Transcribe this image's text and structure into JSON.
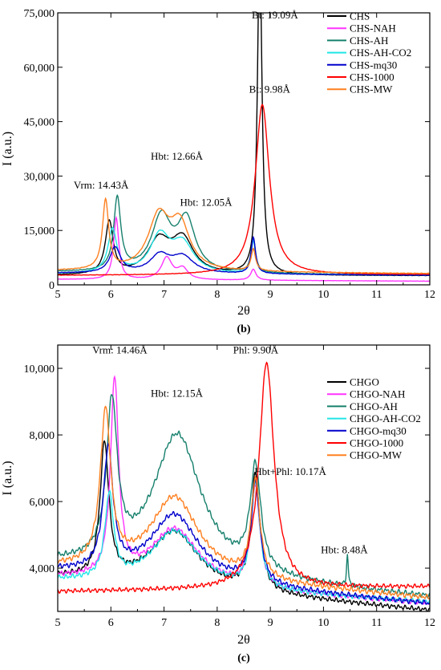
{
  "chart_data": [
    {
      "type": "line",
      "panel_label": "(b)",
      "xlabel": "2θ",
      "ylabel": "I (a.u.)",
      "xlim": [
        5,
        12
      ],
      "ylim": [
        0,
        75000
      ],
      "xticks": [
        5,
        6,
        7,
        8,
        9,
        10,
        11,
        12
      ],
      "yticks": [
        0,
        15000,
        30000,
        45000,
        60000,
        75000
      ],
      "ytick_labels": [
        "0",
        "15,000",
        "30,000",
        "45,000",
        "60,000",
        "75,000"
      ],
      "legend_position": "top-right",
      "grid": false,
      "annotations": [
        {
          "text": "Bt: 19.09Å",
          "x": 8.65,
          "y": 73500
        },
        {
          "text": "Bt: 9.98Å",
          "x": 8.6,
          "y": 53000
        },
        {
          "text": "Hbt: 12.66Å",
          "x": 6.75,
          "y": 34500
        },
        {
          "text": "Vrm: 14.43Å",
          "x": 5.3,
          "y": 26500
        },
        {
          "text": "Hbt: 12.05Å",
          "x": 7.3,
          "y": 21800
        }
      ],
      "series": [
        {
          "name": "CHS",
          "color": "#000000",
          "base": 2500,
          "slope": 0,
          "peaks": [
            [
              5.97,
              14500,
              0.09
            ],
            [
              6.9,
              9000,
              0.25
            ],
            [
              7.35,
              9500,
              0.25
            ],
            [
              8.8,
              93000,
              0.05
            ]
          ]
        },
        {
          "name": "CHS-NAH",
          "color": "#ff33ff",
          "base": 1500,
          "slope": -70,
          "peaks": [
            [
              6.1,
              17000,
              0.06
            ],
            [
              7.05,
              6000,
              0.12
            ],
            [
              7.35,
              3000,
              0.12
            ],
            [
              8.68,
              3000,
              0.06
            ]
          ]
        },
        {
          "name": "CHS-AH",
          "color": "#17806d",
          "base": 3500,
          "slope": -130,
          "peaks": [
            [
              6.12,
              20000,
              0.08
            ],
            [
              6.95,
              15000,
              0.22
            ],
            [
              7.42,
              14000,
              0.2
            ],
            [
              8.68,
              9500,
              0.05
            ]
          ]
        },
        {
          "name": "CHS-AH-CO2",
          "color": "#21e6e6",
          "base": 3000,
          "slope": -50,
          "peaks": [
            [
              6.03,
              12000,
              0.1
            ],
            [
              6.92,
              10000,
              0.22
            ],
            [
              7.35,
              8000,
              0.25
            ],
            [
              8.68,
              9000,
              0.05
            ]
          ]
        },
        {
          "name": "CHS-mq30",
          "color": "#0000cc",
          "base": 3200,
          "slope": -80,
          "peaks": [
            [
              6.08,
              7000,
              0.12
            ],
            [
              6.92,
              4800,
              0.22
            ],
            [
              7.35,
              4500,
              0.25
            ],
            [
              8.68,
              10000,
              0.05
            ]
          ]
        },
        {
          "name": "CHS-1000",
          "color": "#ff0000",
          "base": 2600,
          "slope": 30,
          "peaks": [
            [
              8.85,
              47000,
              0.16
            ]
          ]
        },
        {
          "name": "CHS-MW",
          "color": "#ff8020",
          "base": 3800,
          "slope": -100,
          "peaks": [
            [
              5.9,
              19000,
              0.07
            ],
            [
              6.9,
              14500,
              0.24
            ],
            [
              7.3,
              12000,
              0.22
            ],
            [
              8.68,
              6000,
              0.05
            ]
          ]
        }
      ]
    },
    {
      "type": "line",
      "panel_label": "(c)",
      "xlabel": "2θ",
      "ylabel": "I (a.u.)",
      "xlim": [
        5,
        12
      ],
      "ylim": [
        2700,
        10700
      ],
      "xticks": [
        5,
        6,
        7,
        8,
        9,
        10,
        11,
        12
      ],
      "yticks": [
        4000,
        6000,
        8000,
        10000
      ],
      "ytick_labels": [
        "4,000",
        "6,000",
        "8,000",
        "10,000"
      ],
      "legend_position": "top-right",
      "grid": false,
      "annotations": [
        {
          "text": "Vrm: 14.46Å",
          "x": 5.65,
          "y": 10450
        },
        {
          "text": "Phl: 9.90Å",
          "x": 8.3,
          "y": 10450
        },
        {
          "text": "Hbt: 12.15Å",
          "x": 6.75,
          "y": 9150
        },
        {
          "text": "Hbt+Phl: 10.17Å",
          "x": 8.7,
          "y": 6800
        },
        {
          "text": "Hbt: 8.48Å",
          "x": 9.95,
          "y": 4450
        }
      ],
      "series": [
        {
          "name": "CHGO",
          "color": "#000000",
          "base": 3700,
          "slope": -140,
          "peaks": [
            [
              5.88,
              4000,
              0.1
            ],
            [
              7.2,
              1700,
              0.55
            ],
            [
              8.72,
              3500,
              0.1
            ]
          ]
        },
        {
          "name": "CHGO-NAH",
          "color": "#ff33ff",
          "base": 3700,
          "slope": -110,
          "peaks": [
            [
              6.07,
              5900,
              0.09
            ],
            [
              7.2,
              1700,
              0.55
            ],
            [
              8.72,
              3000,
              0.1
            ]
          ]
        },
        {
          "name": "CHGO-AH",
          "color": "#17806d",
          "base": 4100,
          "slope": -140,
          "peaks": [
            [
              6.02,
              4600,
              0.12
            ],
            [
              7.25,
              4200,
              0.55
            ],
            [
              8.72,
              3100,
              0.12
            ],
            [
              10.45,
              900,
              0.02
            ]
          ]
        },
        {
          "name": "CHGO-AH-CO2",
          "color": "#21e6e6",
          "base": 3600,
          "slope": -90,
          "peaks": [
            [
              5.97,
              2500,
              0.1
            ],
            [
              7.2,
              1700,
              0.55
            ],
            [
              8.72,
              3100,
              0.1
            ]
          ]
        },
        {
          "name": "CHGO-mq30",
          "color": "#0000cc",
          "base": 3900,
          "slope": -140,
          "peaks": [
            [
              5.95,
              3600,
              0.11
            ],
            [
              7.2,
              2000,
              0.55
            ],
            [
              8.72,
              3000,
              0.1
            ]
          ]
        },
        {
          "name": "CHGO-1000",
          "color": "#ff0000",
          "base": 3300,
          "slope": 20,
          "peaks": [
            [
              8.93,
              6800,
              0.17
            ]
          ]
        },
        {
          "name": "CHGO-MW",
          "color": "#ff8020",
          "base": 4000,
          "slope": -130,
          "peaks": [
            [
              5.9,
              4600,
              0.12
            ],
            [
              7.2,
              2400,
              0.55
            ],
            [
              8.72,
              2900,
              0.1
            ]
          ]
        }
      ]
    }
  ]
}
